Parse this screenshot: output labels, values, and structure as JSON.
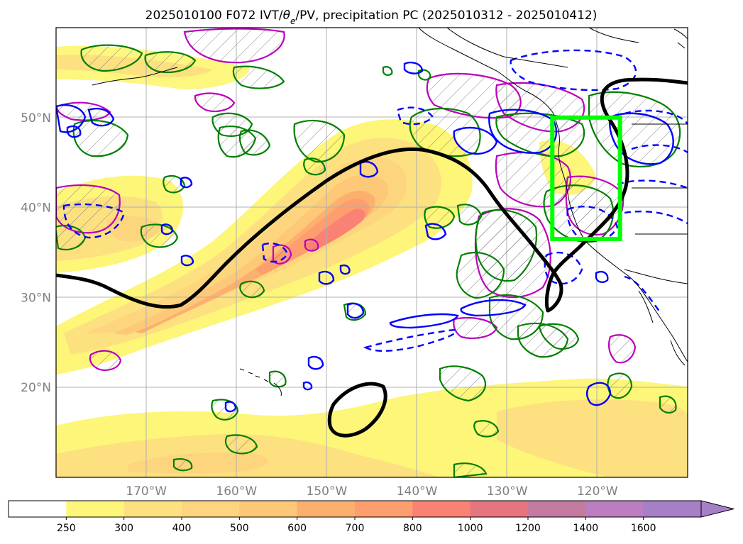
{
  "title": {
    "prefix": "2025010100 F072 IVT/",
    "theta": "θ",
    "theta_sub": "e",
    "suffix": "/PV, precipitation PC (2025010312 - 2025010412)"
  },
  "map": {
    "lon_range": [
      -180,
      -110
    ],
    "lat_range": [
      10,
      60
    ],
    "lat_labels": [
      {
        "lat": 50,
        "text": "50°N"
      },
      {
        "lat": 40,
        "text": "40°N"
      },
      {
        "lat": 30,
        "text": "30°N"
      },
      {
        "lat": 20,
        "text": "20°N"
      }
    ],
    "lon_labels": [
      {
        "lon": -170,
        "text": "170°W"
      },
      {
        "lon": -160,
        "text": "160°W"
      },
      {
        "lon": -150,
        "text": "150°W"
      },
      {
        "lon": -140,
        "text": "140°W"
      },
      {
        "lon": -130,
        "text": "130°W"
      },
      {
        "lon": -120,
        "text": "120°W"
      }
    ],
    "highlight_box": {
      "lon_min": -125,
      "lon_max": -117.5,
      "lat_min": 36.5,
      "lat_max": 50,
      "color": "#00ff00"
    },
    "colors": {
      "theta_e_contour": "#000000",
      "pv_positive": "#0000ff",
      "precip_pc_positive": "#008000",
      "precip_pc_negative": "#bb00bb",
      "coastline": "#000000",
      "grid": "#b0b0b0"
    }
  },
  "colorbar": {
    "levels": [
      "250",
      "300",
      "400",
      "500",
      "600",
      "700",
      "800",
      "1000",
      "1200",
      "1400",
      "1600"
    ],
    "colors": [
      "#ffffff",
      "#fdf678",
      "#fde080",
      "#fdd57e",
      "#fdc878",
      "#fdb06e",
      "#fd9e6e",
      "#fa8275",
      "#e6757f",
      "#c57a9f",
      "#bb7ec0",
      "#a77fc6"
    ],
    "extend": "max"
  }
}
